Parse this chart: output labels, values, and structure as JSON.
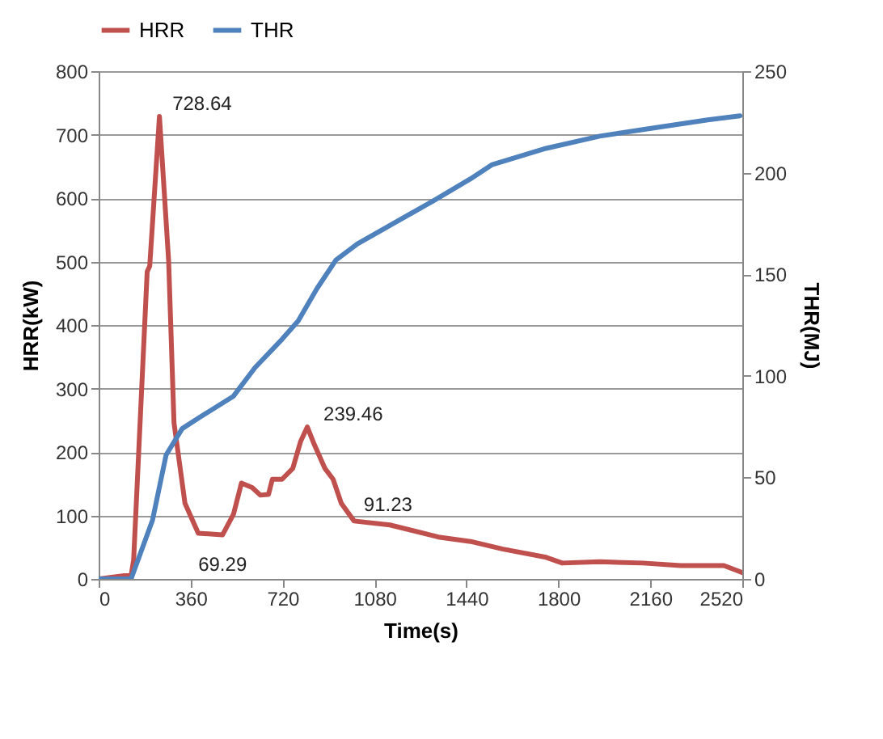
{
  "chart_data": {
    "type": "line",
    "xlabel": "Time(s)",
    "ylabel": "HRR(kW)",
    "y2label": "THR(MJ)",
    "xlim": [
      0,
      2520
    ],
    "xticks": [
      0,
      360,
      720,
      1080,
      1440,
      1800,
      2160,
      2520
    ],
    "ylim": [
      0,
      800
    ],
    "yticks": [
      0,
      100,
      200,
      300,
      400,
      500,
      600,
      700,
      800
    ],
    "y2lim": [
      0,
      250
    ],
    "y2ticks": [
      0,
      50,
      100,
      150,
      200,
      250
    ],
    "grid": "y",
    "legend": "top",
    "marker": "none",
    "line_style": "solid",
    "series": [
      {
        "name": "HRR",
        "color": "#c0504d",
        "x": [
          0,
          100,
          127,
          137,
          190,
          200,
          238,
          274,
          295,
          338,
          390,
          485,
          528,
          559,
          601,
          633,
          665,
          680,
          718,
          760,
          791,
          817,
          844,
          886,
          918,
          950,
          1000,
          1140,
          1330,
          1456,
          1583,
          1752,
          1815,
          1962,
          2131,
          2279,
          2448,
          2500,
          2520
        ],
        "values": [
          0,
          5,
          5,
          30,
          484,
          493,
          728.64,
          501,
          246,
          119,
          72,
          69.29,
          102,
          151,
          144,
          132,
          133,
          157,
          157,
          174,
          217,
          239.46,
          212,
          174,
          157,
          119,
          91.23,
          85,
          66,
          59,
          47,
          34,
          25,
          27,
          25,
          21,
          21,
          13,
          10
        ]
      },
      {
        "name": "THR",
        "color": "#4f81bd",
        "axis": "y2",
        "x": [
          0,
          127,
          211,
          264,
          327,
          401,
          528,
          612,
          718,
          781,
          855,
          929,
          1013,
          1140,
          1308,
          1456,
          1541,
          1752,
          1962,
          2173,
          2385,
          2511
        ],
        "values": [
          0,
          0,
          29,
          61,
          74,
          80,
          90,
          104,
          118,
          127,
          143,
          157,
          165,
          174,
          186,
          197,
          204,
          212,
          218,
          222,
          226,
          228
        ]
      }
    ],
    "annotations": [
      {
        "text": "728.64",
        "x": 238,
        "y": 728.64
      },
      {
        "text": "69.29",
        "x": 485,
        "y": 69.29
      },
      {
        "text": "239.46",
        "x": 817,
        "y": 239.46
      },
      {
        "text": "91.23",
        "x": 1000,
        "y": 91.23
      }
    ]
  }
}
